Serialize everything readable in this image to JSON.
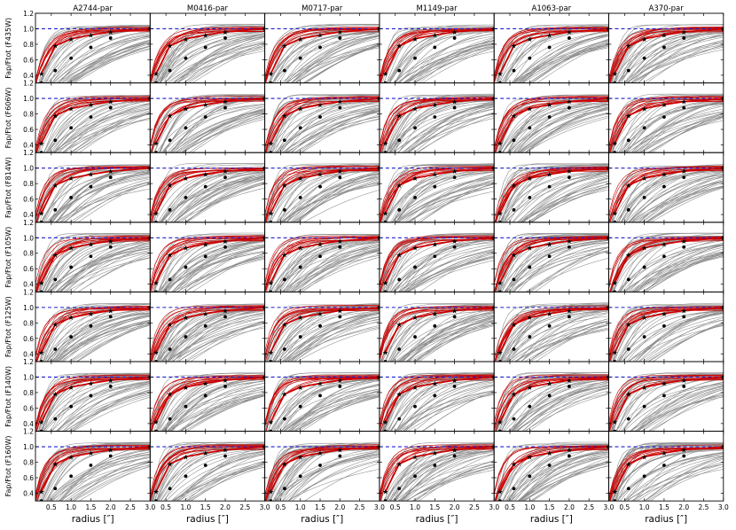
{
  "chart_data": {
    "type": "line",
    "grid_rows": 7,
    "grid_cols": 6,
    "columns": [
      "A2744-par",
      "M0416-par",
      "M0717-par",
      "M1149-par",
      "A1063-par",
      "A370-par"
    ],
    "row_labels": [
      "Fap/Ftot (F435W)",
      "Fap/Ftot (F606W)",
      "Fap/Ftot (F814W)",
      "Fap/Ftot (F105W)",
      "Fap/Ftot (F125W)",
      "Fap/Ftot (F140W)",
      "Fap/Ftot (F160W)"
    ],
    "xlabel": "radius [″]",
    "xlim": [
      0.1,
      3.0
    ],
    "ylim": [
      0.3,
      1.2
    ],
    "xticks": [
      "0.5",
      "1.0",
      "1.5",
      "2.0",
      "2.5",
      "3.0"
    ],
    "yticks": [
      "0.4",
      "0.6",
      "0.8",
      "1.0",
      "1.2"
    ],
    "reference_line": {
      "y": 1.0,
      "style": "dashed",
      "color": "#1f1fcf"
    },
    "series": [
      {
        "kind": "stars",
        "color": "#cc0000",
        "x": [
          0.25,
          0.6,
          1.0,
          1.5,
          2.0,
          3.0
        ],
        "y": [
          0.42,
          0.78,
          0.87,
          0.92,
          0.96,
          1.0
        ]
      },
      {
        "kind": "point-sources",
        "color": "#000000",
        "x": [
          0.25,
          0.6,
          1.0,
          1.5,
          2.0,
          3.0
        ],
        "y": [
          0.3,
          0.46,
          0.62,
          0.76,
          0.88,
          1.0
        ]
      }
    ],
    "colors": {
      "galaxies": "#8a8a8a",
      "stars": "#cc0000",
      "reference": "#1f1fcf",
      "markers": "#000000"
    }
  }
}
